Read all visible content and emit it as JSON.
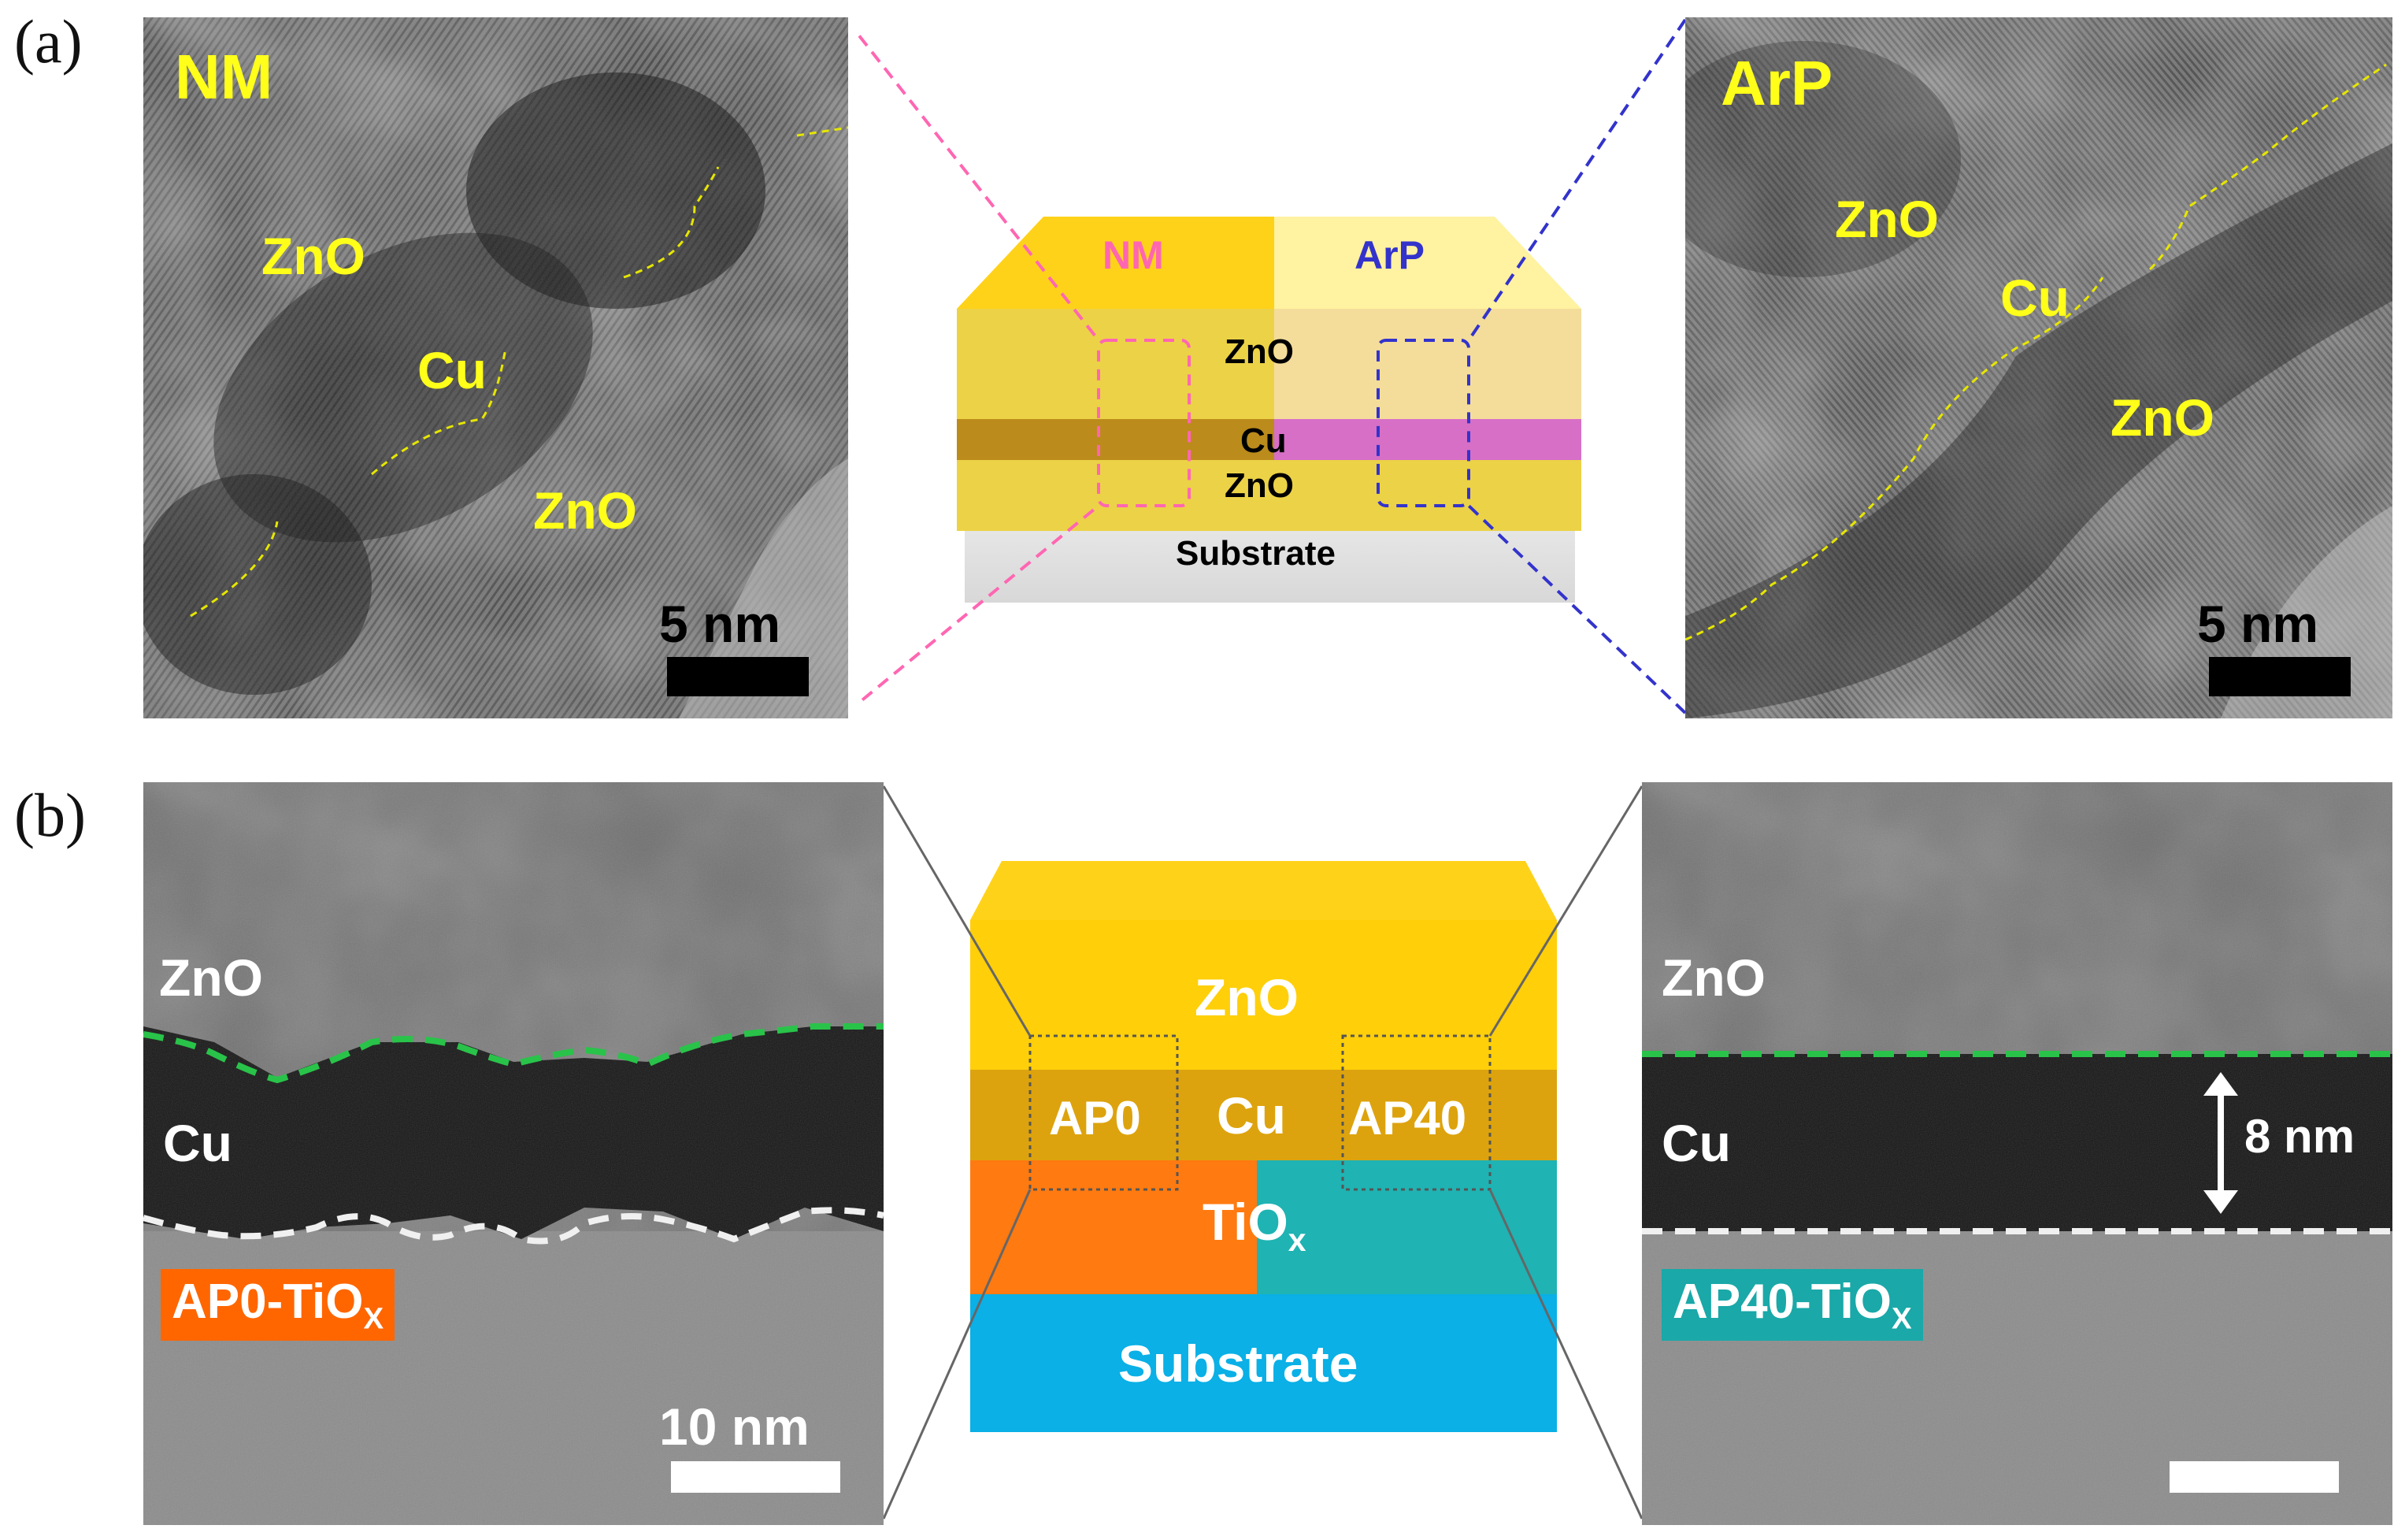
{
  "panel_a": {
    "label": "(a)",
    "left_image": {
      "title": "NM",
      "zno_top": "ZnO",
      "cu": "Cu",
      "zno_bottom": "ZnO",
      "scale": "5 nm"
    },
    "diagram": {
      "left_label": "NM",
      "right_label": "ArP",
      "zno_top": "ZnO",
      "cu": "Cu",
      "zno_bottom": "ZnO",
      "substrate": "Substrate",
      "left_color": "#ff66b2",
      "right_color": "#3333cc"
    },
    "right_image": {
      "title": "ArP",
      "zno_top": "ZnO",
      "cu": "Cu",
      "zno_bottom": "ZnO",
      "scale": "5 nm"
    }
  },
  "panel_b": {
    "label": "(b)",
    "left_image": {
      "zno": "ZnO",
      "cu": "Cu",
      "badge_main": "AP0-TiO",
      "badge_sub": "X",
      "scale": "10 nm"
    },
    "diagram": {
      "zno": "ZnO",
      "ap0": "AP0",
      "cu": "Cu",
      "ap40": "AP40",
      "tiox_main": "TiO",
      "tiox_sub": "x",
      "substrate": "Substrate"
    },
    "right_image": {
      "zno": "ZnO",
      "cu": "Cu",
      "thickness": "8 nm",
      "badge_main": "AP40-TiO",
      "badge_sub": "X"
    }
  }
}
